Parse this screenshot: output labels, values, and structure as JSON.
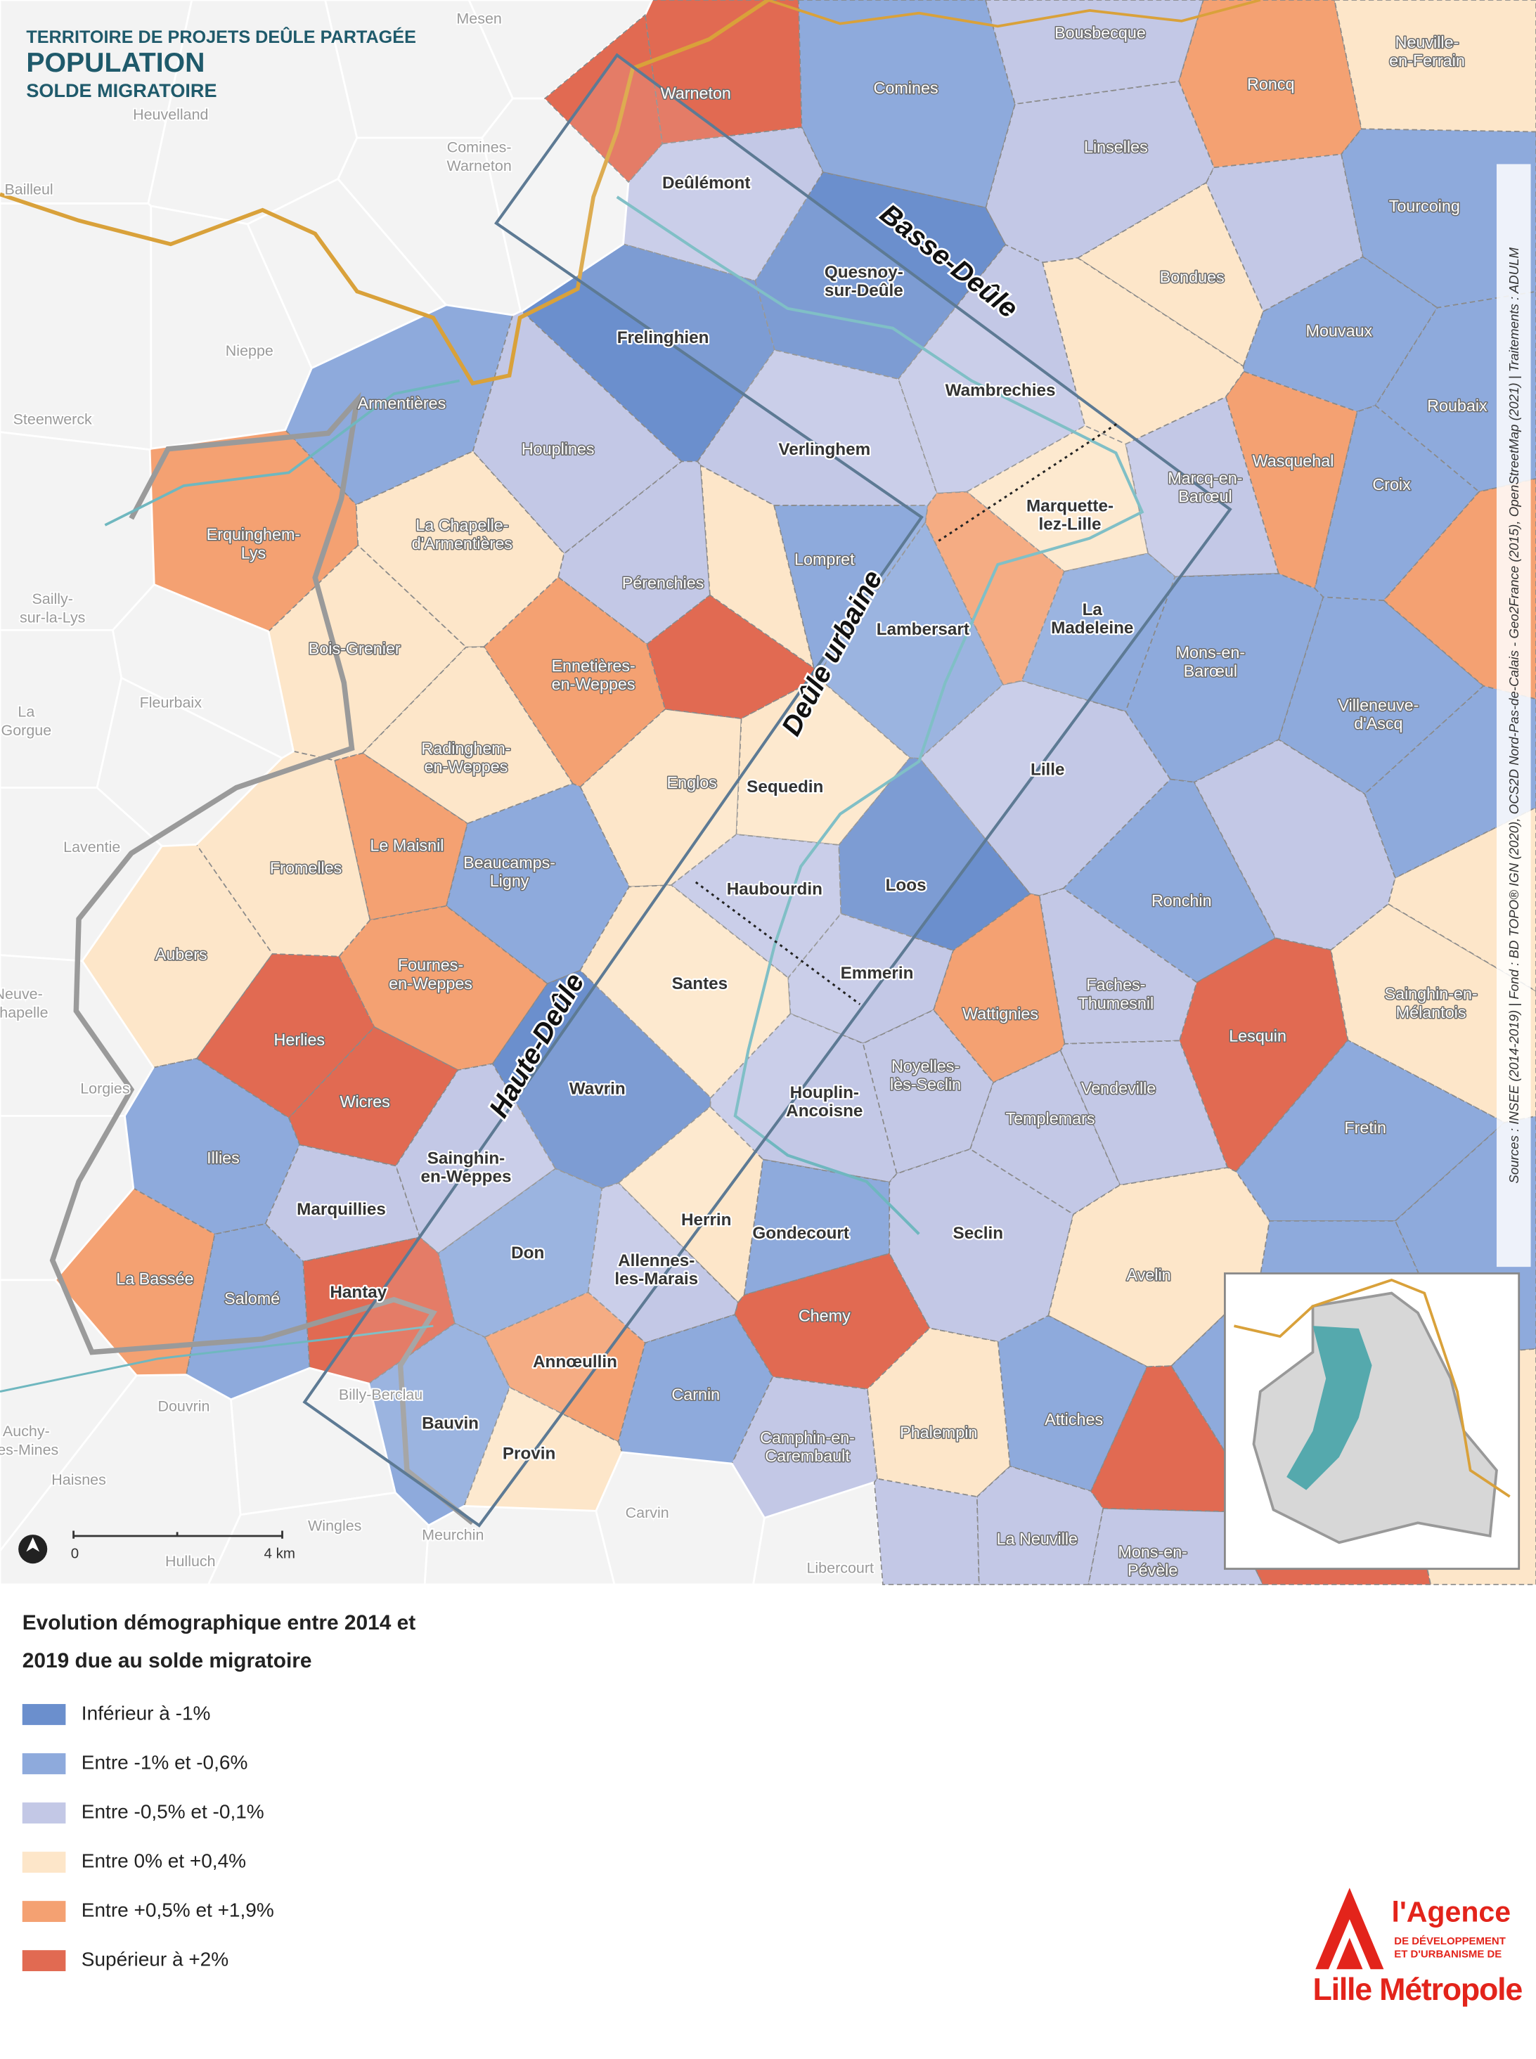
{
  "header": {
    "territory": "TERRITOIRE DE PROJETS DEÛLE PARTAGÉE",
    "title": "POPULATION",
    "subtitle": "SOLDE MIGRATOIRE"
  },
  "zones": [
    "Basse-Deûle",
    "Deûle urbaine",
    "Haute-Deûle"
  ],
  "communes": [
    {
      "name": [
        "Warneton"
      ],
      "legend_item": 5
    },
    {
      "name": [
        "Comines"
      ],
      "legend_item": 1
    },
    {
      "name": [
        "Bousbecque"
      ],
      "legend_item": 2
    },
    {
      "name": [
        "Roncq"
      ],
      "legend_item": 4
    },
    {
      "name": [
        "Neuville-",
        "en-Ferrain"
      ],
      "legend_item": 3
    },
    {
      "name": [
        "Deûlémont"
      ],
      "legend_item": 2
    },
    {
      "name": [
        "Linselles"
      ],
      "legend_item": 2
    },
    {
      "name": [
        "Tourcoing"
      ],
      "legend_item": 1
    },
    {
      "name": [
        "Quesnoy-",
        "sur-Deûle"
      ],
      "legend_item": 0
    },
    {
      "name": [
        "Frelinghien"
      ],
      "legend_item": 0
    },
    {
      "name": [
        "Bondues"
      ],
      "legend_item": 3
    },
    {
      "name": [
        "Mouvaux"
      ],
      "legend_item": 1
    },
    {
      "name": [
        "Wambrechies"
      ],
      "legend_item": 2
    },
    {
      "name": [
        "Armentières"
      ],
      "legend_item": 1
    },
    {
      "name": [
        "Houplines"
      ],
      "legend_item": 2
    },
    {
      "name": [
        "Verlinghem"
      ],
      "legend_item": 2
    },
    {
      "name": [
        "Roubaix"
      ],
      "legend_item": 1
    },
    {
      "name": [
        "Wasquehal"
      ],
      "legend_item": 4
    },
    {
      "name": [
        "Croix"
      ],
      "legend_item": 1
    },
    {
      "name": [
        "Marquette-",
        "lez-Lille"
      ],
      "legend_item": 3
    },
    {
      "name": [
        "Marcq-en-",
        "Barœul"
      ],
      "legend_item": 2
    },
    {
      "name": [
        "Erquinghem-",
        "Lys"
      ],
      "legend_item": 4
    },
    {
      "name": [
        "La Chapelle-",
        "d'Armentières"
      ],
      "legend_item": 3
    },
    {
      "name": [
        "Lompret"
      ],
      "legend_item": 1
    },
    {
      "name": [
        "Pérenchies"
      ],
      "legend_item": 2
    },
    {
      "name": [
        "Lambersart"
      ],
      "legend_item": 1
    },
    {
      "name": [
        "La",
        "Madeleine"
      ],
      "legend_item": 1
    },
    {
      "name": [
        "Bois-Grenier"
      ],
      "legend_item": 3
    },
    {
      "name": [
        "Ennetières-",
        "en-Weppes"
      ],
      "legend_item": 4
    },
    {
      "name": [
        "Englos"
      ],
      "legend_item": 3
    },
    {
      "name": [
        "Sequedin"
      ],
      "legend_item": 3
    },
    {
      "name": [
        "Lille"
      ],
      "legend_item": 2
    },
    {
      "name": [
        "Mons-en-",
        "Barœul"
      ],
      "legend_item": 1
    },
    {
      "name": [
        "Villeneuve-",
        "d'Ascq"
      ],
      "legend_item": 1
    },
    {
      "name": [
        "Radinghem-",
        "en-Weppes"
      ],
      "legend_item": 3
    },
    {
      "name": [
        "Fromelles"
      ],
      "legend_item": 3
    },
    {
      "name": [
        "Le Maisnil"
      ],
      "legend_item": 4
    },
    {
      "name": [
        "Beaucamps-",
        "Ligny"
      ],
      "legend_item": 1
    },
    {
      "name": [
        "Haubourdin"
      ],
      "legend_item": 2
    },
    {
      "name": [
        "Loos"
      ],
      "legend_item": 0
    },
    {
      "name": [
        "Ronchin"
      ],
      "legend_item": 1
    },
    {
      "name": [
        "Aubers"
      ],
      "legend_item": 3
    },
    {
      "name": [
        "Fournes-",
        "en-Weppes"
      ],
      "legend_item": 4
    },
    {
      "name": [
        "Santes"
      ],
      "legend_item": 3
    },
    {
      "name": [
        "Emmerin"
      ],
      "legend_item": 2
    },
    {
      "name": [
        "Wattignies"
      ],
      "legend_item": 4
    },
    {
      "name": [
        "Faches-",
        "Thumesnil"
      ],
      "legend_item": 2
    },
    {
      "name": [
        "Lesquin"
      ],
      "legend_item": 5
    },
    {
      "name": [
        "Sainghin-en-",
        "Mélantois"
      ],
      "legend_item": 3
    },
    {
      "name": [
        "Herlies"
      ],
      "legend_item": 5
    },
    {
      "name": [
        "Wicres"
      ],
      "legend_item": 5
    },
    {
      "name": [
        "Wavrin"
      ],
      "legend_item": 0
    },
    {
      "name": [
        "Houplin-",
        "Ancoisne"
      ],
      "legend_item": 2
    },
    {
      "name": [
        "Noyelles-",
        "lès-Seclin"
      ],
      "legend_item": 2
    },
    {
      "name": [
        "Vendeville"
      ],
      "legend_item": 2
    },
    {
      "name": [
        "Templemars"
      ],
      "legend_item": 2
    },
    {
      "name": [
        "Fretin"
      ],
      "legend_item": 1
    },
    {
      "name": [
        "Illies"
      ],
      "legend_item": 1
    },
    {
      "name": [
        "Sainghin-",
        "en-Weppes"
      ],
      "legend_item": 2
    },
    {
      "name": [
        "Marquillies"
      ],
      "legend_item": 2
    },
    {
      "name": [
        "Herrin"
      ],
      "legend_item": 3
    },
    {
      "name": [
        "Gondecourt"
      ],
      "legend_item": 1
    },
    {
      "name": [
        "Seclin"
      ],
      "legend_item": 2
    },
    {
      "name": [
        "Avelin"
      ],
      "legend_item": 3
    },
    {
      "name": [
        "Don"
      ],
      "legend_item": 1
    },
    {
      "name": [
        "La Bassée"
      ],
      "legend_item": 4
    },
    {
      "name": [
        "Salomé"
      ],
      "legend_item": 1
    },
    {
      "name": [
        "Hantay"
      ],
      "legend_item": 5
    },
    {
      "name": [
        "Allennes-",
        "les-Marais"
      ],
      "legend_item": 2
    },
    {
      "name": [
        "Chemy"
      ],
      "legend_item": 5
    },
    {
      "name": [
        "Annœullin"
      ],
      "legend_item": 4
    },
    {
      "name": [
        "Carnin"
      ],
      "legend_item": 1
    },
    {
      "name": [
        "Phalempin"
      ],
      "legend_item": 3
    },
    {
      "name": [
        "Attiches"
      ],
      "legend_item": 1
    },
    {
      "name": [
        "Camphin-en-",
        "Carembault"
      ],
      "legend_item": 2
    },
    {
      "name": [
        "Bauvin"
      ],
      "legend_item": 1
    },
    {
      "name": [
        "Provin"
      ],
      "legend_item": 3
    },
    {
      "name": [
        "La Neuville"
      ],
      "legend_item": 2
    },
    {
      "name": [
        "Mons-en-",
        "Pévèle"
      ],
      "legend_item": 2
    }
  ],
  "surrounding_places": [
    [
      "Mesen"
    ],
    [
      "Heuvelland"
    ],
    [
      "Comines-",
      "Warneton"
    ],
    [
      "Bailleul"
    ],
    [
      "Nieppe"
    ],
    [
      "Steenwerck"
    ],
    [
      "Sailly-",
      "sur-la-Lys"
    ],
    [
      "Fleurbaix"
    ],
    [
      "La",
      "Gorgue"
    ],
    [
      "Laventie"
    ],
    [
      "Neuve-",
      "Chapelle"
    ],
    [
      "Lorgies"
    ],
    [
      "Billy-Berclau"
    ],
    [
      "Auchy-",
      "les-Mines"
    ],
    [
      "Douvrin"
    ],
    [
      "Haisnes"
    ],
    [
      "Hulluch"
    ],
    [
      "Wingles"
    ],
    [
      "Meurchin"
    ],
    [
      "Carvin"
    ],
    [
      "Libercourt"
    ]
  ],
  "scale": {
    "zero": "0",
    "end": "4 km"
  },
  "sources": "Sources : INSEE (2014-2019)  |  Fond : BD TOPO® IGN (2020), OCS2D Nord-Pas-de-Calais - Geo2France (2015), OpenStreetMap (2021)  |  Traitements : ADULM",
  "legend": {
    "title": [
      "Evolution démographique entre 2014  et",
      "2019 due au solde migratoire"
    ],
    "items": [
      {
        "label": "Inférieur à -1%",
        "color": "#6b8fcd"
      },
      {
        "label": "Entre -1% et -0,6%",
        "color": "#8eaadc"
      },
      {
        "label": "Entre -0,5% et -0,1%",
        "color": "#c3c8e6"
      },
      {
        "label": "Entre 0% et +0,4%",
        "color": "#fde6c9"
      },
      {
        "label": "Entre +0,5% et +1,9%",
        "color": "#f4a172"
      },
      {
        "label": "Supérieur à +2%",
        "color": "#e16a52"
      }
    ]
  },
  "logo": {
    "name": "l'Agence",
    "line1": "DE DÉVELOPPEMENT",
    "line2": "ET D'URBANISME DE",
    "city": "Lille Métropole"
  }
}
